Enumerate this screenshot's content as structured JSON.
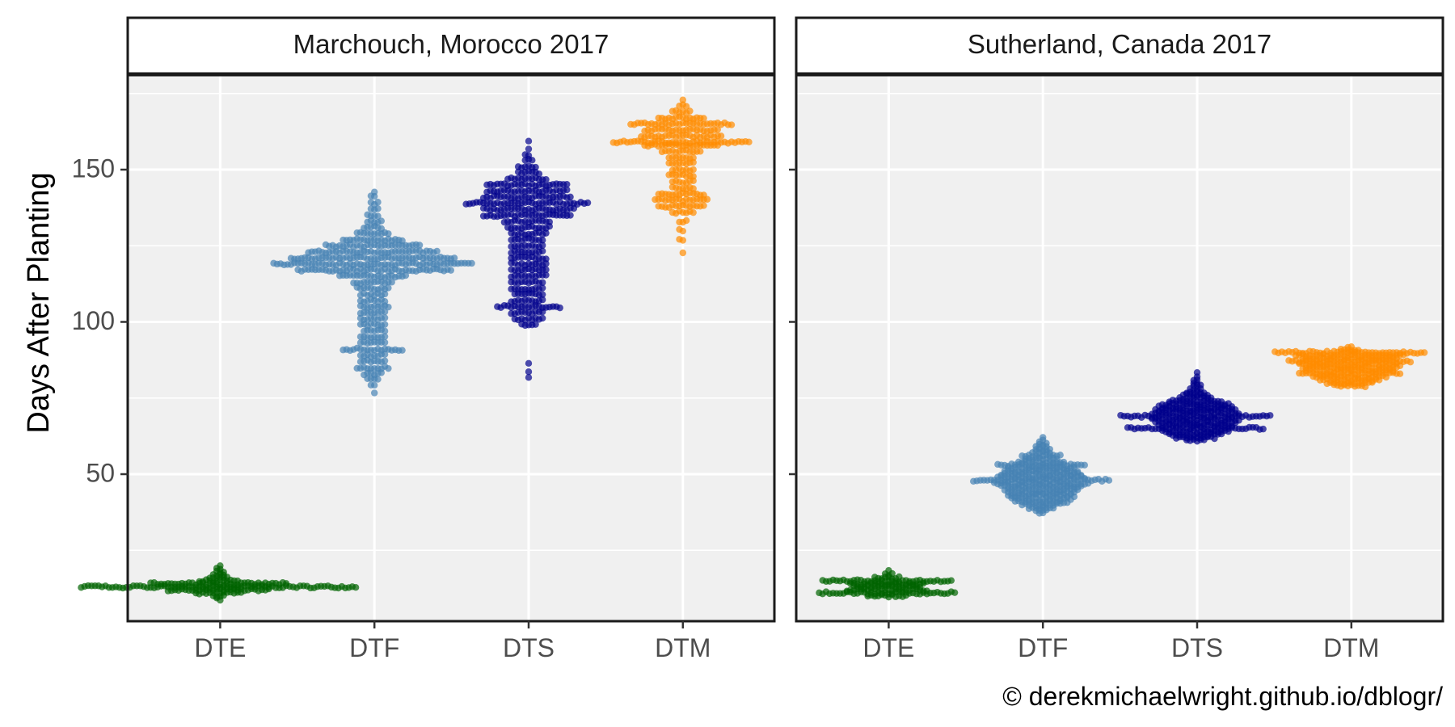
{
  "chart_data": {
    "type": "scatter",
    "subtype": "beeswarm",
    "ylabel": "Days After Planting",
    "ylim": [
      0,
      180
    ],
    "yticks": [
      50,
      100,
      150
    ],
    "grid": true,
    "legend": "none",
    "caption": "© derekmichaelwright.github.io/dblogr/",
    "categories": [
      "DTE",
      "DTF",
      "DTS",
      "DTM"
    ],
    "colors": {
      "DTE": "#006400",
      "DTF": "#4682B4",
      "DTS": "#00008B",
      "DTM": "#FF8C00"
    },
    "panels": [
      {
        "title": "Marchouch, Morocco 2017",
        "series": [
          {
            "category": "DTE",
            "min": 9,
            "max": 20,
            "bins": [
              [
                9,
                2
              ],
              [
                10,
                4
              ],
              [
                11,
                14
              ],
              [
                12,
                30
              ],
              [
                13,
                80
              ],
              [
                14,
                40
              ],
              [
                15,
                12
              ],
              [
                16,
                6
              ],
              [
                17,
                4
              ],
              [
                18,
                3
              ],
              [
                19,
                2
              ],
              [
                20,
                1
              ]
            ]
          },
          {
            "category": "DTF",
            "min": 77,
            "max": 144,
            "bins": [
              [
                77,
                1
              ],
              [
                79,
                2
              ],
              [
                81,
                4
              ],
              [
                83,
                6
              ],
              [
                85,
                10
              ],
              [
                87,
                8
              ],
              [
                89,
                8
              ],
              [
                91,
                18
              ],
              [
                93,
                8
              ],
              [
                95,
                8
              ],
              [
                97,
                7
              ],
              [
                99,
                8
              ],
              [
                101,
                8
              ],
              [
                103,
                8
              ],
              [
                105,
                9
              ],
              [
                107,
                8
              ],
              [
                109,
                8
              ],
              [
                111,
                10
              ],
              [
                113,
                12
              ],
              [
                115,
                20
              ],
              [
                117,
                45
              ],
              [
                119,
                58
              ],
              [
                121,
                48
              ],
              [
                123,
                38
              ],
              [
                125,
                28
              ],
              [
                127,
                18
              ],
              [
                129,
                10
              ],
              [
                131,
                6
              ],
              [
                133,
                5
              ],
              [
                135,
                4
              ],
              [
                137,
                3
              ],
              [
                139,
                3
              ],
              [
                141,
                2
              ],
              [
                143,
                1
              ]
            ]
          },
          {
            "category": "DTS",
            "min": 82,
            "max": 159,
            "bins": [
              [
                82,
                1
              ],
              [
                84,
                1
              ],
              [
                86,
                1
              ],
              [
                99,
                5
              ],
              [
                101,
                9
              ],
              [
                103,
                10
              ],
              [
                105,
                19
              ],
              [
                107,
                10
              ],
              [
                109,
                9
              ],
              [
                111,
                10
              ],
              [
                113,
                10
              ],
              [
                115,
                11
              ],
              [
                117,
                11
              ],
              [
                119,
                11
              ],
              [
                121,
                11
              ],
              [
                123,
                10
              ],
              [
                125,
                10
              ],
              [
                127,
                10
              ],
              [
                129,
                11
              ],
              [
                131,
                13
              ],
              [
                133,
                14
              ],
              [
                135,
                26
              ],
              [
                137,
                27
              ],
              [
                139,
                36
              ],
              [
                141,
                26
              ],
              [
                143,
                24
              ],
              [
                145,
                24
              ],
              [
                147,
                12
              ],
              [
                149,
                7
              ],
              [
                151,
                6
              ],
              [
                153,
                3
              ],
              [
                155,
                2
              ],
              [
                157,
                1
              ],
              [
                159,
                1
              ]
            ]
          },
          {
            "category": "DTM",
            "min": 123,
            "max": 173,
            "bins": [
              [
                123,
                1
              ],
              [
                127,
                2
              ],
              [
                130,
                2
              ],
              [
                133,
                3
              ],
              [
                136,
                7
              ],
              [
                138,
                14
              ],
              [
                140,
                16
              ],
              [
                142,
                14
              ],
              [
                144,
                7
              ],
              [
                146,
                7
              ],
              [
                148,
                8
              ],
              [
                150,
                7
              ],
              [
                152,
                8
              ],
              [
                154,
                8
              ],
              [
                156,
                12
              ],
              [
                158,
                22
              ],
              [
                159,
                40
              ],
              [
                161,
                24
              ],
              [
                163,
                22
              ],
              [
                165,
                30
              ],
              [
                167,
                14
              ],
              [
                169,
                6
              ],
              [
                171,
                3
              ],
              [
                173,
                1
              ]
            ]
          }
        ]
      },
      {
        "title": "Sutherland, Canada 2017",
        "series": [
          {
            "category": "DTE",
            "min": 10,
            "max": 18,
            "bins": [
              [
                10,
                12
              ],
              [
                11,
                40
              ],
              [
                12,
                24
              ],
              [
                13,
                20
              ],
              [
                14,
                22
              ],
              [
                15,
                38
              ],
              [
                16,
                8
              ],
              [
                17,
                3
              ],
              [
                18,
                1
              ]
            ]
          },
          {
            "category": "DTF",
            "min": 37,
            "max": 62,
            "bins": [
              [
                37,
                2
              ],
              [
                38,
                4
              ],
              [
                39,
                8
              ],
              [
                40,
                12
              ],
              [
                41,
                16
              ],
              [
                42,
                18
              ],
              [
                43,
                20
              ],
              [
                44,
                20
              ],
              [
                45,
                22
              ],
              [
                46,
                24
              ],
              [
                47,
                28
              ],
              [
                48,
                40
              ],
              [
                49,
                26
              ],
              [
                50,
                24
              ],
              [
                51,
                22
              ],
              [
                52,
                20
              ],
              [
                53,
                26
              ],
              [
                54,
                14
              ],
              [
                55,
                10
              ],
              [
                56,
                12
              ],
              [
                57,
                6
              ],
              [
                58,
                5
              ],
              [
                59,
                4
              ],
              [
                60,
                3
              ],
              [
                61,
                2
              ],
              [
                62,
                1
              ]
            ]
          },
          {
            "category": "DTS",
            "min": 61,
            "max": 83,
            "bins": [
              [
                61,
                6
              ],
              [
                62,
                12
              ],
              [
                63,
                16
              ],
              [
                64,
                20
              ],
              [
                65,
                40
              ],
              [
                66,
                22
              ],
              [
                67,
                24
              ],
              [
                68,
                26
              ],
              [
                69,
                44
              ],
              [
                70,
                26
              ],
              [
                71,
                24
              ],
              [
                72,
                22
              ],
              [
                73,
                20
              ],
              [
                74,
                16
              ],
              [
                75,
                10
              ],
              [
                76,
                8
              ],
              [
                77,
                6
              ],
              [
                78,
                4
              ],
              [
                79,
                3
              ],
              [
                80,
                2
              ],
              [
                81,
                2
              ],
              [
                82,
                1
              ],
              [
                83,
                1
              ]
            ]
          },
          {
            "category": "DTM",
            "min": 79,
            "max": 92,
            "bins": [
              [
                79,
                10
              ],
              [
                80,
                14
              ],
              [
                81,
                18
              ],
              [
                82,
                22
              ],
              [
                83,
                30
              ],
              [
                84,
                26
              ],
              [
                85,
                28
              ],
              [
                86,
                30
              ],
              [
                87,
                36
              ],
              [
                88,
                28
              ],
              [
                89,
                32
              ],
              [
                90,
                44
              ],
              [
                91,
                6
              ],
              [
                92,
                2
              ]
            ]
          }
        ]
      }
    ]
  }
}
